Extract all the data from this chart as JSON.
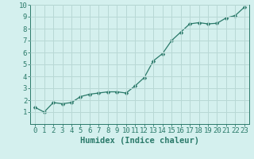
{
  "xlabel": "Humidex (Indice chaleur)",
  "ylabel": "",
  "x_values": [
    0,
    1,
    2,
    3,
    4,
    5,
    6,
    7,
    8,
    9,
    10,
    11,
    12,
    13,
    14,
    15,
    16,
    17,
    18,
    19,
    20,
    21,
    22,
    23
  ],
  "y_values": [
    1.4,
    1.0,
    1.8,
    1.7,
    1.8,
    2.3,
    2.5,
    2.6,
    2.7,
    2.7,
    2.6,
    3.2,
    3.9,
    5.3,
    5.9,
    7.0,
    7.7,
    8.4,
    8.5,
    8.4,
    8.45,
    8.9,
    9.1,
    9.8
  ],
  "line_color": "#2b7a6a",
  "marker": "D",
  "marker_size": 2.5,
  "bg_color": "#d4f0ee",
  "grid_color": "#b8d8d5",
  "xlim": [
    -0.5,
    23.5
  ],
  "ylim": [
    0,
    10
  ],
  "xticks": [
    0,
    1,
    2,
    3,
    4,
    5,
    6,
    7,
    8,
    9,
    10,
    11,
    12,
    13,
    14,
    15,
    16,
    17,
    18,
    19,
    20,
    21,
    22,
    23
  ],
  "yticks": [
    1,
    2,
    3,
    4,
    5,
    6,
    7,
    8,
    9,
    10
  ],
  "tick_fontsize": 6.5,
  "label_fontsize": 7.5
}
